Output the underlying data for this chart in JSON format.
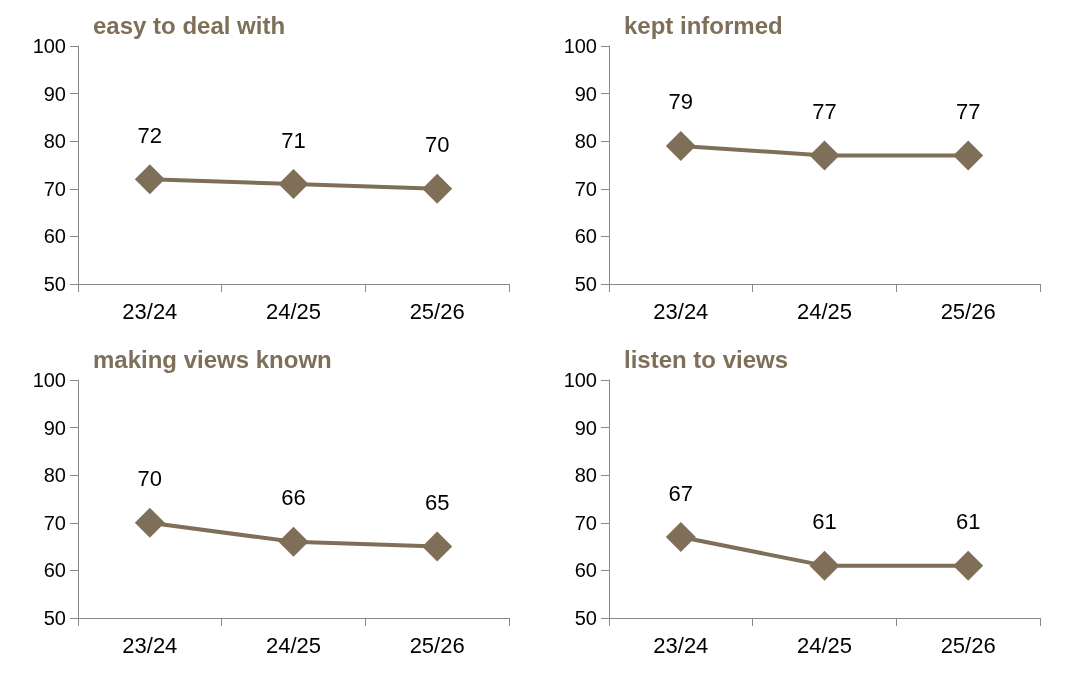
{
  "chart_data": [
    {
      "type": "line",
      "title": "easy to deal with",
      "categories": [
        "23/24",
        "24/25",
        "25/26"
      ],
      "values": [
        72,
        71,
        70
      ],
      "color": "#7f6f58",
      "ylim": [
        50,
        100
      ],
      "yticks": [
        50,
        60,
        70,
        80,
        90,
        100
      ],
      "grid": false,
      "marker": "diamond",
      "line_style": "solid",
      "data_labels": true
    },
    {
      "type": "line",
      "title": "kept informed",
      "categories": [
        "23/24",
        "24/25",
        "25/26"
      ],
      "values": [
        79,
        77,
        77
      ],
      "color": "#7f6f58",
      "ylim": [
        50,
        100
      ],
      "yticks": [
        50,
        60,
        70,
        80,
        90,
        100
      ],
      "grid": false,
      "marker": "diamond",
      "line_style": "solid",
      "data_labels": true
    },
    {
      "type": "line",
      "title": "making views known",
      "categories": [
        "23/24",
        "24/25",
        "25/26"
      ],
      "values": [
        70,
        66,
        65
      ],
      "color": "#7f6f58",
      "ylim": [
        50,
        100
      ],
      "yticks": [
        50,
        60,
        70,
        80,
        90,
        100
      ],
      "grid": false,
      "marker": "diamond",
      "line_style": "solid",
      "data_labels": true
    },
    {
      "type": "line",
      "title": "listen to views",
      "categories": [
        "23/24",
        "24/25",
        "25/26"
      ],
      "values": [
        67,
        61,
        61
      ],
      "color": "#7f6f58",
      "ylim": [
        50,
        100
      ],
      "yticks": [
        50,
        60,
        70,
        80,
        90,
        100
      ],
      "grid": false,
      "marker": "diamond",
      "line_style": "solid",
      "data_labels": true
    }
  ]
}
